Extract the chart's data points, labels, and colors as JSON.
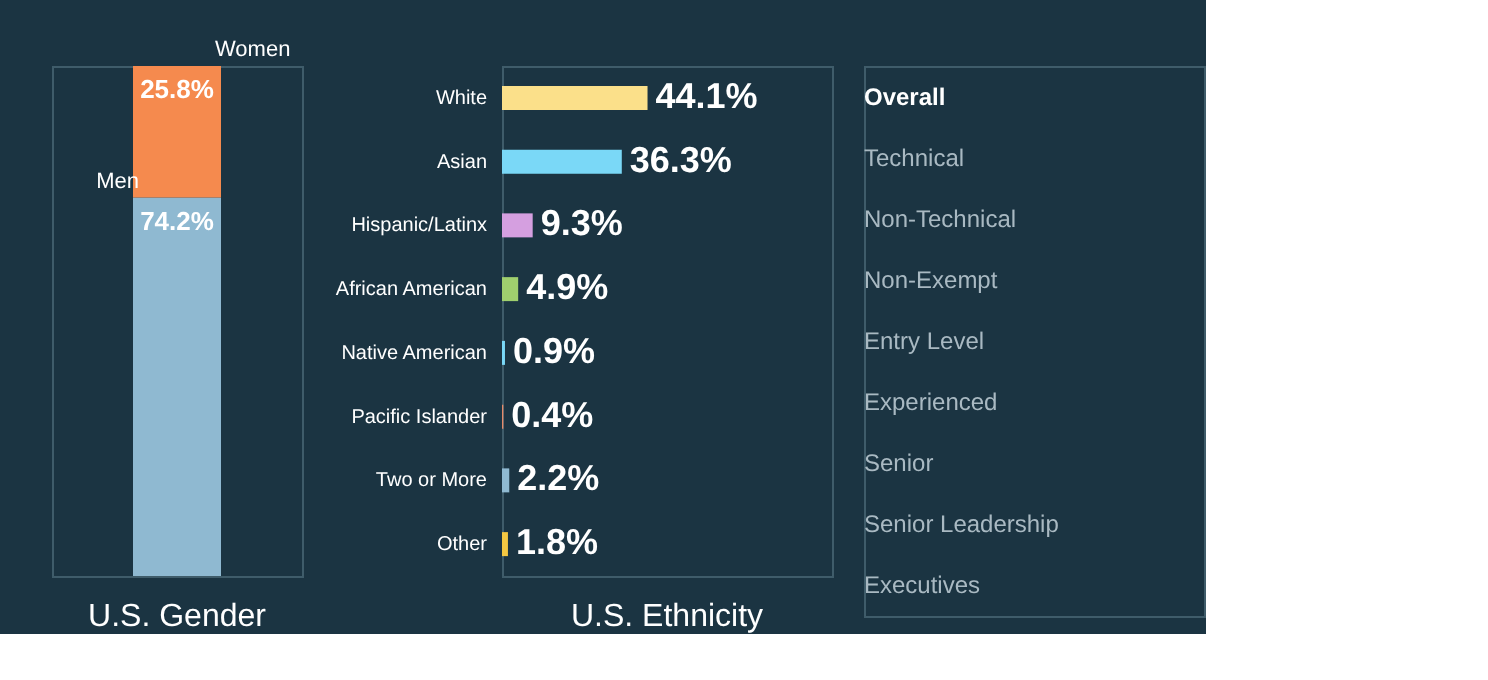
{
  "chart_data": [
    {
      "type": "bar",
      "title": "U.S. Gender",
      "stacked": true,
      "categories": [
        null
      ],
      "series": [
        {
          "name": "Men",
          "color": "#8fb9d1",
          "values": [
            74.2
          ],
          "value_labels": [
            "74.2%"
          ]
        },
        {
          "name": "Women",
          "color": "#f58a4e",
          "values": [
            25.8
          ],
          "value_labels": [
            "25.8%"
          ]
        }
      ]
    },
    {
      "type": "bar",
      "title": "U.S. Ethnicity",
      "orientation": "horizontal",
      "categories": [
        "White",
        "Asian",
        "Hispanic/Latinx",
        "African American",
        "Native American",
        "Pacific Islander",
        "Two or More",
        "Other"
      ],
      "values": [
        44.1,
        36.3,
        9.3,
        4.9,
        0.9,
        0.4,
        2.2,
        1.8
      ],
      "colors": [
        "#fbe08a",
        "#7ad8f7",
        "#d59fe0",
        "#9fcf6e",
        "#7ad8f7",
        "#e48a6a",
        "#8fb9d1",
        "#f5c842"
      ],
      "value_labels": [
        "44.1%",
        "36.3%",
        "9.3%",
        "4.9%",
        "0.9%",
        "0.4%",
        "2.2%",
        "1.8%"
      ],
      "xlim": [
        0,
        100
      ]
    },
    {
      "type": "other",
      "annotations": [
        "Overall",
        "Technical",
        "Non-Technical",
        "Non-Exempt",
        "Entry Level",
        "Experienced",
        "Senior",
        "Senior Leadership",
        "Executives"
      ]
    }
  ]
}
